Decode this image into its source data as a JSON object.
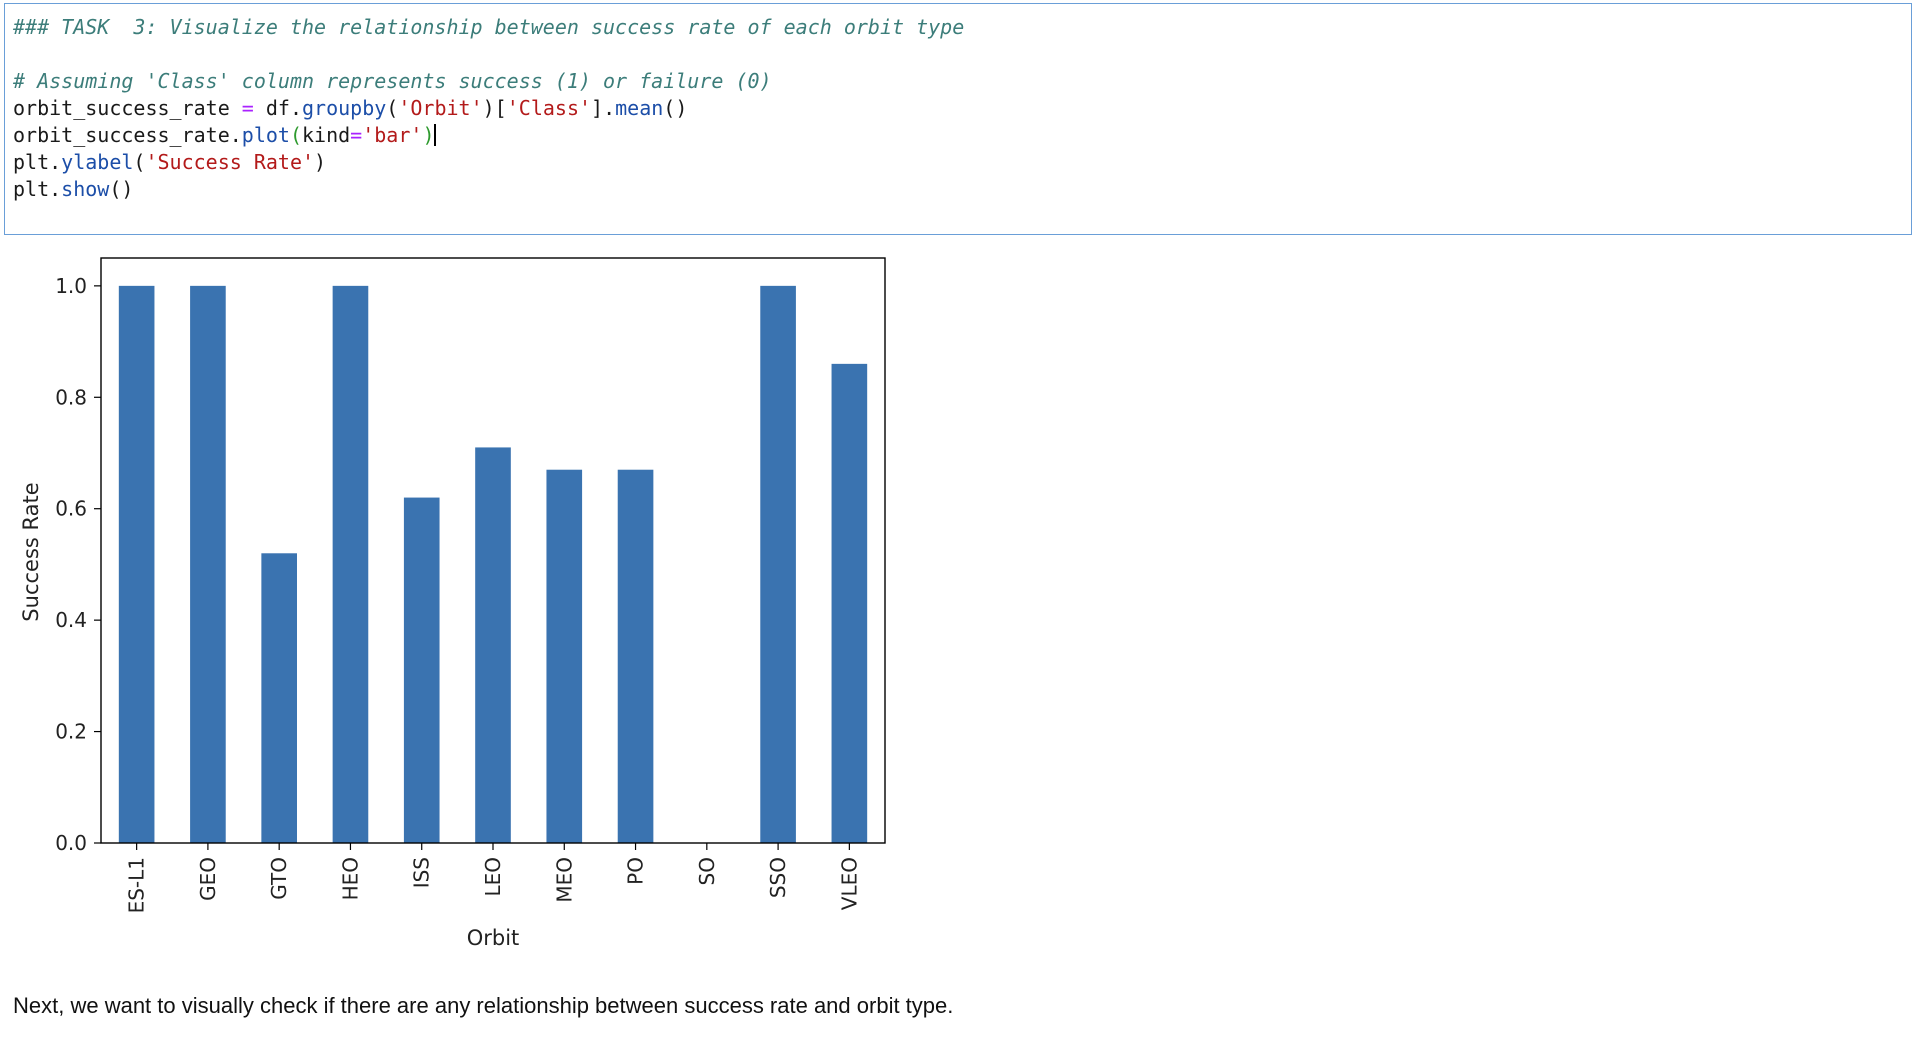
{
  "code_cell": {
    "lines": [
      {
        "parts": [
          {
            "t": "### TASK  3: Visualize the relationship between success rate of each orbit type",
            "c": "comment"
          }
        ]
      },
      {
        "parts": [
          {
            "t": " ",
            "c": "plain"
          }
        ]
      },
      {
        "parts": [
          {
            "t": "# Assuming 'Class' column represents success (1) or failure (0)",
            "c": "comment"
          }
        ]
      },
      {
        "parts": [
          {
            "t": "orbit_success_rate ",
            "c": "plain"
          },
          {
            "t": "=",
            "c": "op"
          },
          {
            "t": " df.",
            "c": "plain"
          },
          {
            "t": "groupby",
            "c": "fn"
          },
          {
            "t": "(",
            "c": "plain"
          },
          {
            "t": "'Orbit'",
            "c": "str"
          },
          {
            "t": ")[",
            "c": "plain"
          },
          {
            "t": "'Class'",
            "c": "str"
          },
          {
            "t": "].",
            "c": "plain"
          },
          {
            "t": "mean",
            "c": "fn"
          },
          {
            "t": "()",
            "c": "plain"
          }
        ]
      },
      {
        "parts": [
          {
            "t": "orbit_success_rate.",
            "c": "plain"
          },
          {
            "t": "plot",
            "c": "fn"
          },
          {
            "t": "(",
            "c": "paren-g"
          },
          {
            "t": "kind",
            "c": "plain"
          },
          {
            "t": "=",
            "c": "op"
          },
          {
            "t": "'bar'",
            "c": "str"
          },
          {
            "t": ")",
            "c": "paren-g"
          }
        ],
        "cursor": true
      },
      {
        "parts": [
          {
            "t": "plt.",
            "c": "plain"
          },
          {
            "t": "ylabel",
            "c": "fn"
          },
          {
            "t": "(",
            "c": "plain"
          },
          {
            "t": "'Success Rate'",
            "c": "str"
          },
          {
            "t": ")",
            "c": "plain"
          }
        ]
      },
      {
        "parts": [
          {
            "t": "plt.",
            "c": "plain"
          },
          {
            "t": "show",
            "c": "fn"
          },
          {
            "t": "()",
            "c": "plain"
          }
        ]
      }
    ]
  },
  "chart_data": {
    "type": "bar",
    "categories": [
      "ES-L1",
      "GEO",
      "GTO",
      "HEO",
      "ISS",
      "LEO",
      "MEO",
      "PO",
      "SO",
      "SSO",
      "VLEO"
    ],
    "values": [
      1.0,
      1.0,
      0.52,
      1.0,
      0.62,
      0.71,
      0.67,
      0.67,
      0.0,
      1.0,
      0.86
    ],
    "xlabel": "Orbit",
    "ylabel": "Success Rate",
    "ylim": [
      0,
      1.05
    ],
    "yticks": [
      "0.0",
      "0.2",
      "0.4",
      "0.6",
      "0.8",
      "1.0"
    ],
    "grid": false,
    "bar_color": "#3a73b0"
  },
  "markdown": {
    "text": "Next, we want to visually check if there are any relationship between success rate and orbit type."
  }
}
